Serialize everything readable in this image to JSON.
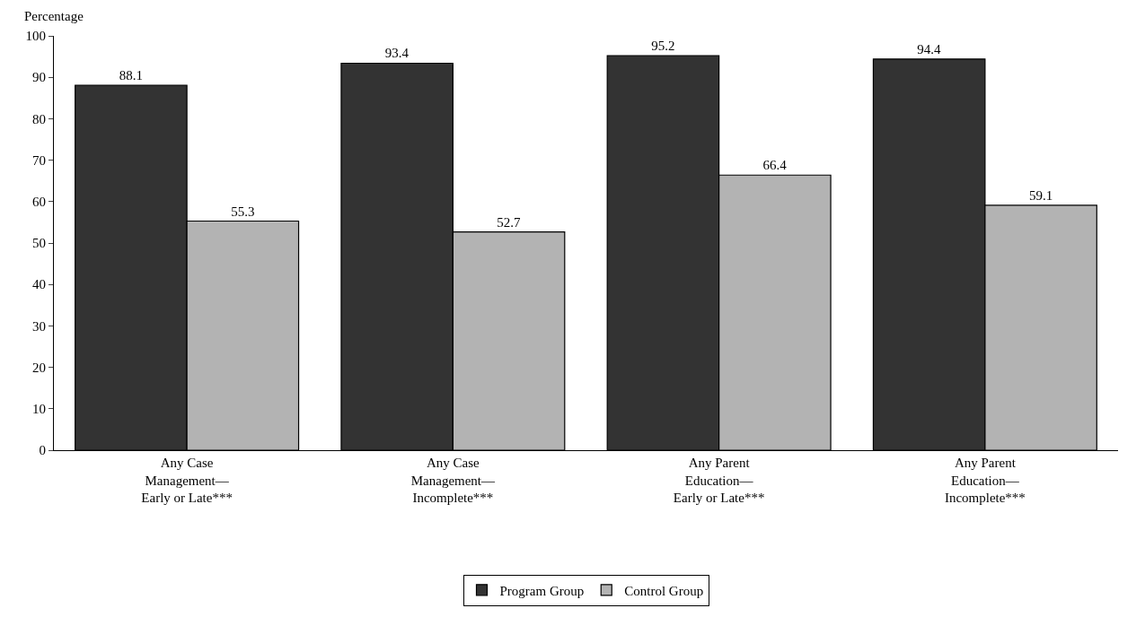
{
  "chart_data": {
    "type": "bar",
    "ylabel": "Percentage",
    "categories": [
      "Any Case\nManagement—\nEarly or Late***",
      "Any Case\nManagement—\nIncomplete***",
      "Any Parent\nEducation—\nEarly or Late***",
      "Any Parent\nEducation—\nIncomplete***"
    ],
    "series": [
      {
        "name": "Program Group",
        "color": "#333333",
        "values": [
          88.1,
          93.4,
          95.2,
          94.4
        ]
      },
      {
        "name": "Control Group",
        "color": "#b3b3b3",
        "values": [
          55.3,
          52.7,
          66.4,
          59.1
        ]
      }
    ],
    "ylim": [
      0,
      100
    ],
    "yticks": [
      0,
      10,
      20,
      30,
      40,
      50,
      60,
      70,
      80,
      90,
      100
    ],
    "data_labels": true,
    "grid": false,
    "legend": "bottom"
  }
}
